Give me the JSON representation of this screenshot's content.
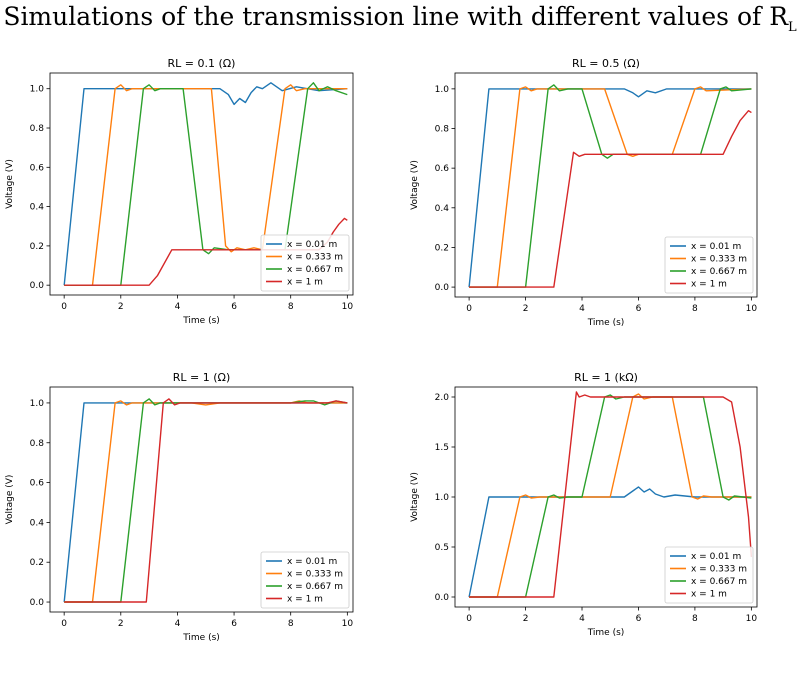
{
  "page_title": {
    "text": "Simulations of the transmission line with different values of R",
    "subscript": "L"
  },
  "chart_data": [
    {
      "type": "line",
      "title": "RL = 0.1 (Ω)",
      "xlabel": "Time (s)",
      "ylabel": "Voltage (V)",
      "xlim": [
        -0.5,
        10.2
      ],
      "ylim": [
        -0.05,
        1.08
      ],
      "xticks": [
        0,
        2,
        4,
        6,
        8,
        10
      ],
      "xtick_labels": [
        "0",
        "2",
        "4",
        "6",
        "8",
        "10"
      ],
      "yticks": [
        0.0,
        0.2,
        0.4,
        0.6,
        0.8,
        1.0
      ],
      "ytick_labels": [
        "0.0",
        "0.2",
        "0.4",
        "0.6",
        "0.8",
        "1.0"
      ],
      "legend_position": "lower-right",
      "series": [
        {
          "name": "x = 0.01 m",
          "color": "#1f77b4",
          "x": [
            0,
            0.7,
            5.5,
            5.8,
            6.0,
            6.2,
            6.4,
            6.6,
            6.8,
            7.0,
            7.3,
            7.7,
            8.2,
            9,
            10
          ],
          "y": [
            0,
            1,
            1,
            0.97,
            0.92,
            0.95,
            0.93,
            0.98,
            1.01,
            1.0,
            1.03,
            0.99,
            1.01,
            0.99,
            1.0
          ]
        },
        {
          "name": "x = 0.333 m",
          "color": "#ff7f0e",
          "x": [
            0,
            1.0,
            1.8,
            2.0,
            2.2,
            2.4,
            5.2,
            5.7,
            5.9,
            6.1,
            6.4,
            6.7,
            7.0,
            7.8,
            8.0,
            8.2,
            8.5,
            10
          ],
          "y": [
            0,
            0,
            1,
            1.02,
            0.99,
            1.0,
            1.0,
            0.2,
            0.17,
            0.19,
            0.18,
            0.19,
            0.18,
            1.0,
            1.02,
            0.99,
            1.0,
            1.0
          ]
        },
        {
          "name": "x = 0.667 m",
          "color": "#2ca02c",
          "x": [
            0,
            2.0,
            2.8,
            3.0,
            3.2,
            3.4,
            4.2,
            4.9,
            5.1,
            5.3,
            5.8,
            6.2,
            7.8,
            8.6,
            8.8,
            9.0,
            9.3,
            9.6,
            10
          ],
          "y": [
            0,
            0,
            1,
            1.02,
            0.99,
            1.0,
            1.0,
            0.18,
            0.16,
            0.19,
            0.18,
            0.18,
            0.18,
            1.0,
            1.03,
            0.99,
            1.01,
            0.99,
            0.97
          ]
        },
        {
          "name": "x = 1 m",
          "color": "#d62728",
          "x": [
            0,
            3.0,
            3.3,
            3.8,
            4.2,
            9.0,
            9.3,
            9.5,
            9.7,
            9.9,
            10
          ],
          "y": [
            0,
            0,
            0.05,
            0.18,
            0.18,
            0.18,
            0.22,
            0.27,
            0.31,
            0.34,
            0.33
          ]
        }
      ]
    },
    {
      "type": "line",
      "title": "RL = 0.5 (Ω)",
      "xlabel": "Time (s)",
      "ylabel": "Voltage (V)",
      "xlim": [
        -0.5,
        10.2
      ],
      "ylim": [
        -0.05,
        1.08
      ],
      "xticks": [
        0,
        2,
        4,
        6,
        8,
        10
      ],
      "xtick_labels": [
        "0",
        "2",
        "4",
        "6",
        "8",
        "10"
      ],
      "yticks": [
        0.0,
        0.2,
        0.4,
        0.6,
        0.8,
        1.0
      ],
      "ytick_labels": [
        "0.0",
        "0.2",
        "0.4",
        "0.6",
        "0.8",
        "1.0"
      ],
      "legend_position": "lower-right",
      "series": [
        {
          "name": "x = 0.01 m",
          "color": "#1f77b4",
          "x": [
            0,
            0.7,
            5.5,
            5.8,
            6.0,
            6.3,
            6.6,
            7.0,
            8.0,
            10
          ],
          "y": [
            0,
            1,
            1,
            0.98,
            0.96,
            0.99,
            0.98,
            1.0,
            1.0,
            1.0
          ]
        },
        {
          "name": "x = 0.333 m",
          "color": "#ff7f0e",
          "x": [
            0,
            1.0,
            1.8,
            2.0,
            2.2,
            2.4,
            4.8,
            5.6,
            5.8,
            6.0,
            6.5,
            7.2,
            8.0,
            8.2,
            8.4,
            10
          ],
          "y": [
            0,
            0,
            1,
            1.01,
            0.99,
            1.0,
            1.0,
            0.67,
            0.66,
            0.67,
            0.67,
            0.67,
            1.0,
            1.01,
            0.99,
            1.0
          ]
        },
        {
          "name": "x = 0.667 m",
          "color": "#2ca02c",
          "x": [
            0,
            2.0,
            2.8,
            3.0,
            3.2,
            3.5,
            4.0,
            4.7,
            4.9,
            5.1,
            5.5,
            8.2,
            8.9,
            9.1,
            9.3,
            10
          ],
          "y": [
            0,
            0,
            1,
            1.02,
            0.99,
            1.0,
            1.0,
            0.67,
            0.65,
            0.67,
            0.67,
            0.67,
            1.0,
            1.01,
            0.99,
            1.0
          ]
        },
        {
          "name": "x = 1 m",
          "color": "#d62728",
          "x": [
            0,
            3.0,
            3.7,
            3.9,
            4.1,
            4.5,
            9.0,
            9.3,
            9.6,
            9.9,
            10
          ],
          "y": [
            0,
            0,
            0.68,
            0.66,
            0.67,
            0.67,
            0.67,
            0.76,
            0.84,
            0.89,
            0.88
          ]
        }
      ]
    },
    {
      "type": "line",
      "title": "RL = 1 (Ω)",
      "xlabel": "Time (s)",
      "ylabel": "Voltage (V)",
      "xlim": [
        -0.5,
        10.2
      ],
      "ylim": [
        -0.05,
        1.08
      ],
      "xticks": [
        0,
        2,
        4,
        6,
        8,
        10
      ],
      "xtick_labels": [
        "0",
        "2",
        "4",
        "6",
        "8",
        "10"
      ],
      "yticks": [
        0.0,
        0.2,
        0.4,
        0.6,
        0.8,
        1.0
      ],
      "ytick_labels": [
        "0.0",
        "0.2",
        "0.4",
        "0.6",
        "0.8",
        "1.0"
      ],
      "legend_position": "lower-right",
      "series": [
        {
          "name": "x = 0.01 m",
          "color": "#1f77b4",
          "x": [
            0,
            0.7,
            10
          ],
          "y": [
            0,
            1,
            1
          ]
        },
        {
          "name": "x = 0.333 m",
          "color": "#ff7f0e",
          "x": [
            0,
            1.0,
            1.8,
            2.0,
            2.2,
            2.4,
            4.5,
            5.0,
            5.5,
            6.0,
            8.0,
            8.3,
            8.6,
            9.0,
            10
          ],
          "y": [
            0,
            0,
            1,
            1.01,
            0.99,
            1.0,
            1.0,
            0.99,
            1.0,
            1.0,
            1.0,
            1.01,
            1.0,
            1.0,
            1.0
          ]
        },
        {
          "name": "x = 0.667 m",
          "color": "#2ca02c",
          "x": [
            0,
            2.0,
            2.8,
            3.0,
            3.2,
            3.4,
            8.0,
            8.5,
            8.8,
            9.2,
            9.6,
            10
          ],
          "y": [
            0,
            0,
            1,
            1.02,
            0.99,
            1.0,
            1.0,
            1.01,
            1.01,
            0.99,
            1.01,
            1.0
          ]
        },
        {
          "name": "x = 1 m",
          "color": "#d62728",
          "x": [
            0,
            2.9,
            3.5,
            3.7,
            3.9,
            4.1,
            9.3,
            9.6,
            10
          ],
          "y": [
            0,
            0,
            1.0,
            1.02,
            0.99,
            1.0,
            1.0,
            1.01,
            1.0
          ]
        }
      ]
    },
    {
      "type": "line",
      "title": "RL = 1 (kΩ)",
      "xlabel": "Time (s)",
      "ylabel": "Voltage (V)",
      "xlim": [
        -0.5,
        10.2
      ],
      "ylim": [
        -0.1,
        2.1
      ],
      "xticks": [
        0,
        2,
        4,
        6,
        8,
        10
      ],
      "xtick_labels": [
        "0",
        "2",
        "4",
        "6",
        "8",
        "10"
      ],
      "yticks": [
        0.0,
        0.5,
        1.0,
        1.5,
        2.0
      ],
      "ytick_labels": [
        "0.0",
        "0.5",
        "1.0",
        "1.5",
        "2.0"
      ],
      "legend_position": "lower-right",
      "series": [
        {
          "name": "x = 0.01 m",
          "color": "#1f77b4",
          "x": [
            0,
            0.7,
            5.5,
            5.8,
            6.0,
            6.2,
            6.4,
            6.6,
            6.9,
            7.3,
            8.0,
            10
          ],
          "y": [
            0,
            1,
            1,
            1.06,
            1.1,
            1.05,
            1.08,
            1.03,
            1.0,
            1.02,
            1.0,
            1.0
          ]
        },
        {
          "name": "x = 0.333 m",
          "color": "#ff7f0e",
          "x": [
            0,
            1.0,
            1.8,
            2.0,
            2.2,
            2.5,
            5.0,
            5.8,
            6.0,
            6.2,
            6.5,
            7.2,
            7.9,
            8.1,
            8.3,
            8.6,
            10
          ],
          "y": [
            0,
            0,
            1,
            1.02,
            0.99,
            1.0,
            1.0,
            2.0,
            2.03,
            1.98,
            2.0,
            2.0,
            1.0,
            0.98,
            1.01,
            1.0,
            1.0
          ]
        },
        {
          "name": "x = 0.667 m",
          "color": "#2ca02c",
          "x": [
            0,
            2.0,
            2.8,
            3.0,
            3.2,
            3.5,
            4.0,
            4.8,
            5.0,
            5.2,
            5.5,
            8.3,
            9.0,
            9.2,
            9.4,
            10
          ],
          "y": [
            0,
            0,
            1,
            1.02,
            0.99,
            1.0,
            1.0,
            2.0,
            2.02,
            1.98,
            2.0,
            2.0,
            1.0,
            0.97,
            1.01,
            0.99
          ]
        },
        {
          "name": "x = 1 m",
          "color": "#d62728",
          "x": [
            0,
            3.0,
            3.8,
            3.9,
            4.1,
            4.3,
            8.5,
            9.0,
            9.3,
            9.6,
            9.9,
            10.0
          ],
          "y": [
            0,
            0,
            2.05,
            2.0,
            2.02,
            2.0,
            2.0,
            2.0,
            1.95,
            1.5,
            0.8,
            0.4
          ]
        }
      ]
    }
  ]
}
